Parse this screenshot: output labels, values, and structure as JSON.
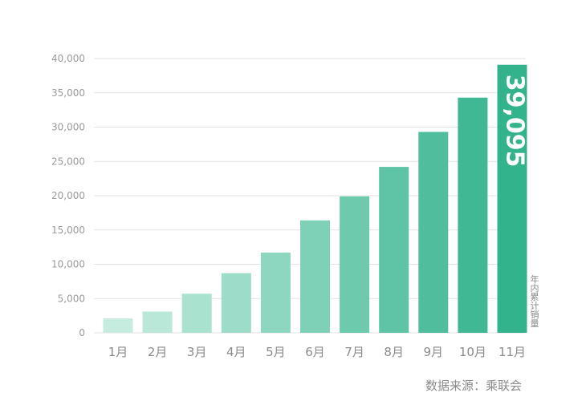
{
  "chart_data": {
    "type": "bar",
    "categories": [
      "1月",
      "2月",
      "3月",
      "4月",
      "5月",
      "6月",
      "7月",
      "8月",
      "9月",
      "10月",
      "11月"
    ],
    "values": [
      2100,
      3100,
      5700,
      8700,
      11700,
      16400,
      19900,
      24200,
      29300,
      34300,
      39095
    ],
    "ylim": [
      0,
      40000
    ],
    "yticks": [
      "0",
      "5,000",
      "10,000",
      "15,000",
      "20,000",
      "25,000",
      "30,000",
      "35,000",
      "40,000"
    ],
    "ytick_values": [
      0,
      5000,
      10000,
      15000,
      20000,
      25000,
      30000,
      35000,
      40000
    ],
    "highlight_label": "39,095",
    "series_label": "年内累计销量",
    "grid": true,
    "colors": [
      "#c6ece0",
      "#b9e7d8",
      "#aae2d0",
      "#9ddcc8",
      "#8dd6bf",
      "#7ed0b6",
      "#6ecaad",
      "#5fc4a5",
      "#50be9c",
      "#40b894",
      "#33b38b"
    ]
  },
  "source_text": "数据来源：乘联会"
}
